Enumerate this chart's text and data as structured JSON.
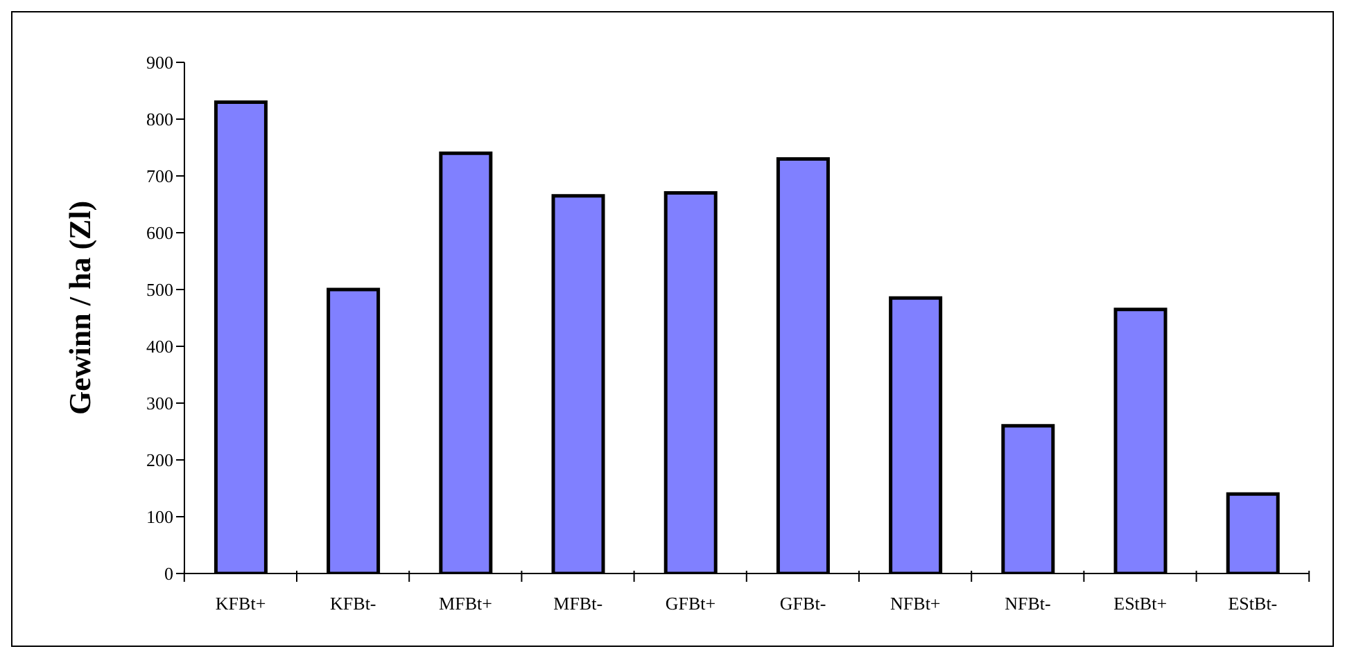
{
  "chart_data": {
    "type": "bar",
    "ylabel": "Gewinn / ha (Zl)",
    "categories": [
      "KFBt+",
      "KFBt-",
      "MFBt+",
      "MFBt-",
      "GFBt+",
      "GFBt-",
      "NFBt+",
      "NFBt-",
      "EStBt+",
      "EStBt-"
    ],
    "values": [
      830,
      500,
      740,
      665,
      670,
      730,
      485,
      260,
      465,
      140
    ],
    "color": "#8080ff",
    "ylim": [
      0,
      900
    ],
    "yticks": [
      0,
      100,
      200,
      300,
      400,
      500,
      600,
      700,
      800,
      900
    ],
    "grid": false,
    "legend": false
  }
}
